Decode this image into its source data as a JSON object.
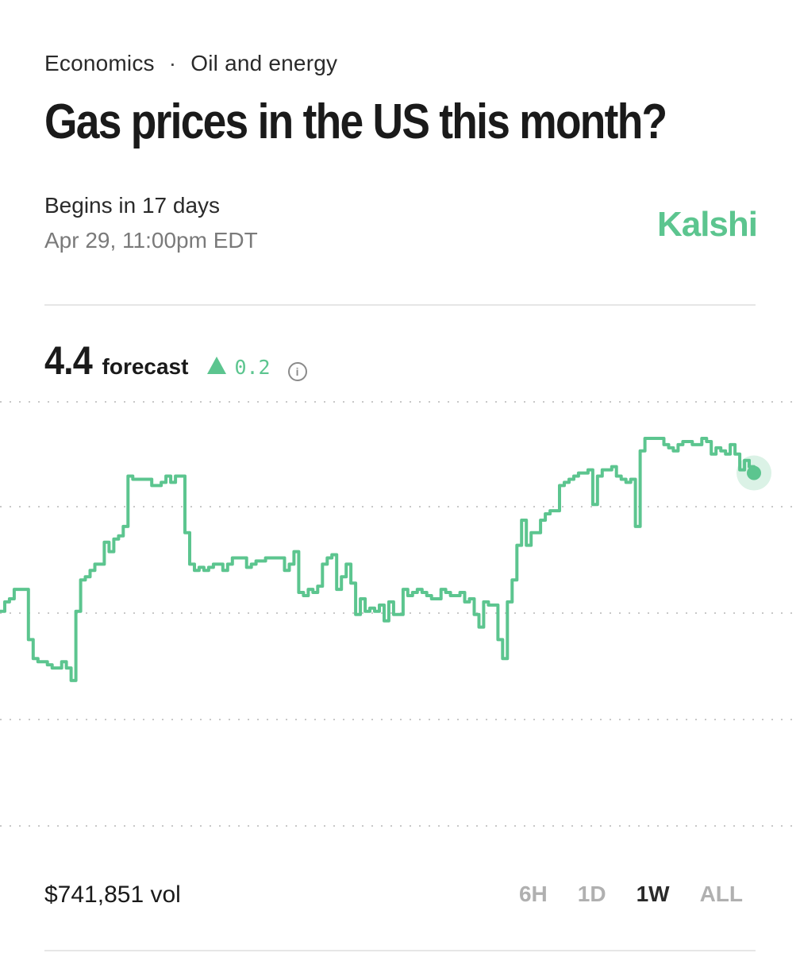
{
  "breadcrumb": {
    "category": "Economics",
    "separator": "·",
    "subcategory": "Oil and energy"
  },
  "title": "Gas prices in the US this month?",
  "schedule": {
    "begins": "Begins in 17 days",
    "date": "Apr 29, 11:00pm EDT"
  },
  "brand": {
    "name": "Kalshi",
    "color": "#5cc58f"
  },
  "forecast": {
    "value": "4.4",
    "label": "forecast",
    "change": "0.2",
    "change_icon": "triangle-up-icon",
    "info_icon": "info-icon"
  },
  "volume": "$741,851 vol",
  "ranges": [
    {
      "label": "6H",
      "active": false
    },
    {
      "label": "1D",
      "active": false
    },
    {
      "label": "1W",
      "active": true
    },
    {
      "label": "ALL",
      "active": false
    }
  ],
  "chart_data": {
    "type": "line",
    "color": "#5cc58f",
    "grid": "dotted horizontal",
    "series_y": [
      0.45,
      0.48,
      0.49,
      0.52,
      0.52,
      0.52,
      0.36,
      0.3,
      0.29,
      0.29,
      0.28,
      0.27,
      0.27,
      0.29,
      0.27,
      0.23,
      0.45,
      0.55,
      0.56,
      0.58,
      0.6,
      0.6,
      0.67,
      0.64,
      0.68,
      0.69,
      0.72,
      0.88,
      0.87,
      0.87,
      0.87,
      0.87,
      0.85,
      0.85,
      0.86,
      0.88,
      0.86,
      0.88,
      0.88,
      0.7,
      0.6,
      0.58,
      0.59,
      0.58,
      0.59,
      0.6,
      0.6,
      0.58,
      0.6,
      0.62,
      0.62,
      0.62,
      0.59,
      0.6,
      0.61,
      0.61,
      0.62,
      0.62,
      0.62,
      0.62,
      0.58,
      0.6,
      0.64,
      0.51,
      0.5,
      0.52,
      0.51,
      0.53,
      0.6,
      0.62,
      0.63,
      0.52,
      0.56,
      0.6,
      0.54,
      0.44,
      0.49,
      0.45,
      0.46,
      0.45,
      0.47,
      0.42,
      0.48,
      0.44,
      0.44,
      0.52,
      0.5,
      0.51,
      0.52,
      0.51,
      0.5,
      0.49,
      0.49,
      0.52,
      0.51,
      0.5,
      0.5,
      0.51,
      0.48,
      0.49,
      0.44,
      0.4,
      0.48,
      0.47,
      0.47,
      0.36,
      0.3,
      0.48,
      0.55,
      0.66,
      0.74,
      0.66,
      0.7,
      0.7,
      0.74,
      0.76,
      0.77,
      0.77,
      0.85,
      0.86,
      0.87,
      0.88,
      0.89,
      0.89,
      0.9,
      0.79,
      0.88,
      0.9,
      0.9,
      0.91,
      0.88,
      0.87,
      0.86,
      0.87,
      0.72,
      0.96,
      1.0,
      1.0,
      1.0,
      1.0,
      0.98,
      0.97,
      0.96,
      0.98,
      0.99,
      0.99,
      0.98,
      0.98,
      1.0,
      0.99,
      0.95,
      0.97,
      0.96,
      0.95,
      0.98,
      0.95,
      0.9,
      0.93,
      0.91,
      0.89
    ]
  }
}
